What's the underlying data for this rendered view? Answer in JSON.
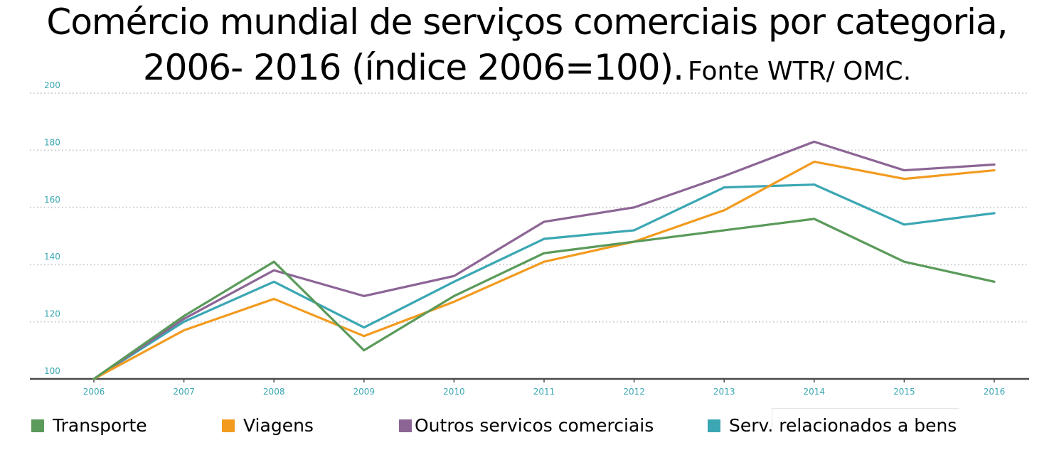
{
  "title": {
    "line1": "Comércio mundial de serviços comerciais por categoria,",
    "line2": "2006- 2016 (índice 2006=100).",
    "source": "Fonte WTR/ OMC."
  },
  "chart_data": {
    "type": "line",
    "title": "Comércio mundial de serviços comerciais por categoria, 2006- 2016 (índice 2006=100).",
    "x": [
      "2006",
      "2007",
      "2008",
      "2009",
      "2010",
      "2011",
      "2012",
      "2013",
      "2014",
      "2015",
      "2016"
    ],
    "ylim": [
      100,
      200
    ],
    "yticks": [
      100,
      120,
      140,
      160,
      180,
      200
    ],
    "grid": true,
    "legend_position": "bottom",
    "series": [
      {
        "name": "Transporte",
        "color": "#5a9a5a",
        "values": [
          100,
          122,
          141,
          110,
          129,
          144,
          148,
          152,
          156,
          141,
          134
        ]
      },
      {
        "name": "Viagens",
        "color": "#f29b1f",
        "values": [
          100,
          117,
          128,
          115,
          127,
          141,
          148,
          159,
          176,
          170,
          173
        ]
      },
      {
        "name": "Outros servicos comerciais",
        "color": "#8c6595",
        "values": [
          100,
          121,
          138,
          129,
          136,
          155,
          160,
          171,
          183,
          173,
          175
        ]
      },
      {
        "name": "Serv. relacionados a bens",
        "color": "#3aa7b3",
        "values": [
          100,
          120,
          134,
          118,
          134,
          149,
          152,
          167,
          168,
          154,
          158
        ]
      }
    ]
  }
}
